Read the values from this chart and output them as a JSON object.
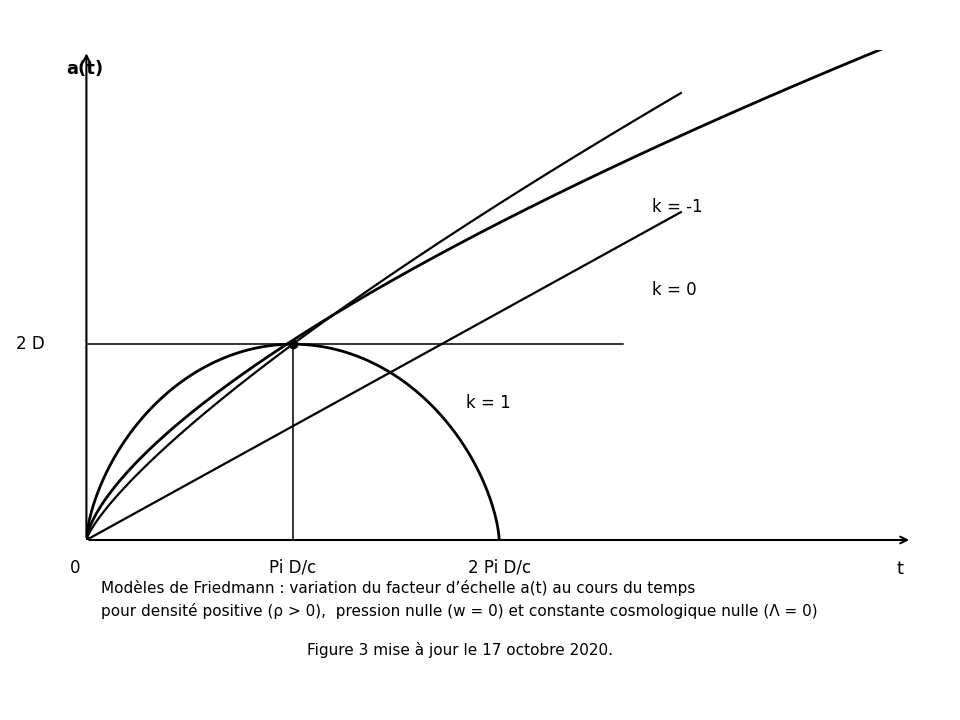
{
  "background_color": "#ffffff",
  "xlim": [
    0,
    10
  ],
  "ylim": [
    0,
    10
  ],
  "pi_D_c": 2.5,
  "two_pi_D_c": 5.0,
  "two_D": 4.0,
  "label_k_neg1": "k = -1",
  "label_k0": "k = 0",
  "label_k1": "k = 1",
  "label_2D": "2 D",
  "label_0": "0",
  "label_pi": "Pi D/c",
  "label_2pi": "2 Pi D/c",
  "label_t": "t",
  "label_at": "a(t)",
  "caption_line1": "Modèles de Friedmann : variation du facteur d’échelle a(t) au cours du temps",
  "caption_line2": "pour densité positive (ρ > 0),  pression nulle (w = 0) et constante cosmologique nulle (Λ = 0)",
  "caption_line3": "Figure 3 mise à jour le 17 octobre 2020.",
  "line_color": "#000000",
  "font_size_labels": 12,
  "font_size_caption": 11,
  "font_size_caption3": 11,
  "font_size_axis_labels": 13
}
